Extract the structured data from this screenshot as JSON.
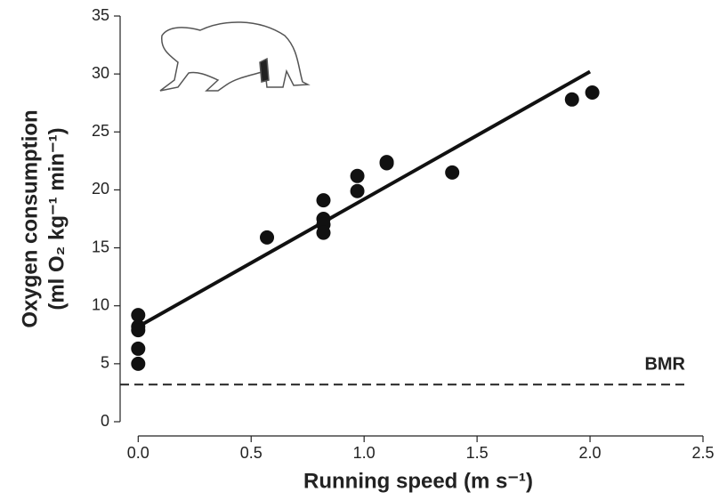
{
  "chart_data": {
    "type": "scatter",
    "x_label": "Running speed (m s⁻¹)",
    "y_label": [
      "Oxygen consumption",
      "(ml O₂ kg⁻¹ min⁻¹)"
    ],
    "x": [
      0,
      0,
      0,
      0,
      0,
      0.57,
      0.82,
      0.82,
      0.82,
      0.82,
      0.97,
      0.97,
      1.1,
      1.1,
      1.39,
      1.92,
      2.01
    ],
    "values": [
      9.2,
      8.2,
      7.9,
      6.3,
      5.0,
      15.9,
      19.1,
      17.5,
      17.0,
      16.3,
      21.2,
      19.9,
      22.3,
      22.4,
      21.5,
      27.8,
      28.4
    ],
    "color": "#111111",
    "fit": {
      "x": [
        0,
        2.0
      ],
      "y": [
        8.2,
        30.2
      ],
      "color": "#111111"
    },
    "bmr": {
      "label": "BMR",
      "value": 3.2
    },
    "xlim": [
      -0.08,
      2.5
    ],
    "ylim": [
      0,
      35
    ],
    "xticks": [
      {
        "value": 0,
        "label": "0.0"
      },
      0.5,
      {
        "value": 1,
        "label": "1.0"
      },
      1.5,
      {
        "value": 2,
        "label": "2.0"
      },
      2.5
    ],
    "yticks": [
      0,
      5,
      10,
      15,
      20,
      25,
      30,
      35
    ],
    "grid": false
  }
}
